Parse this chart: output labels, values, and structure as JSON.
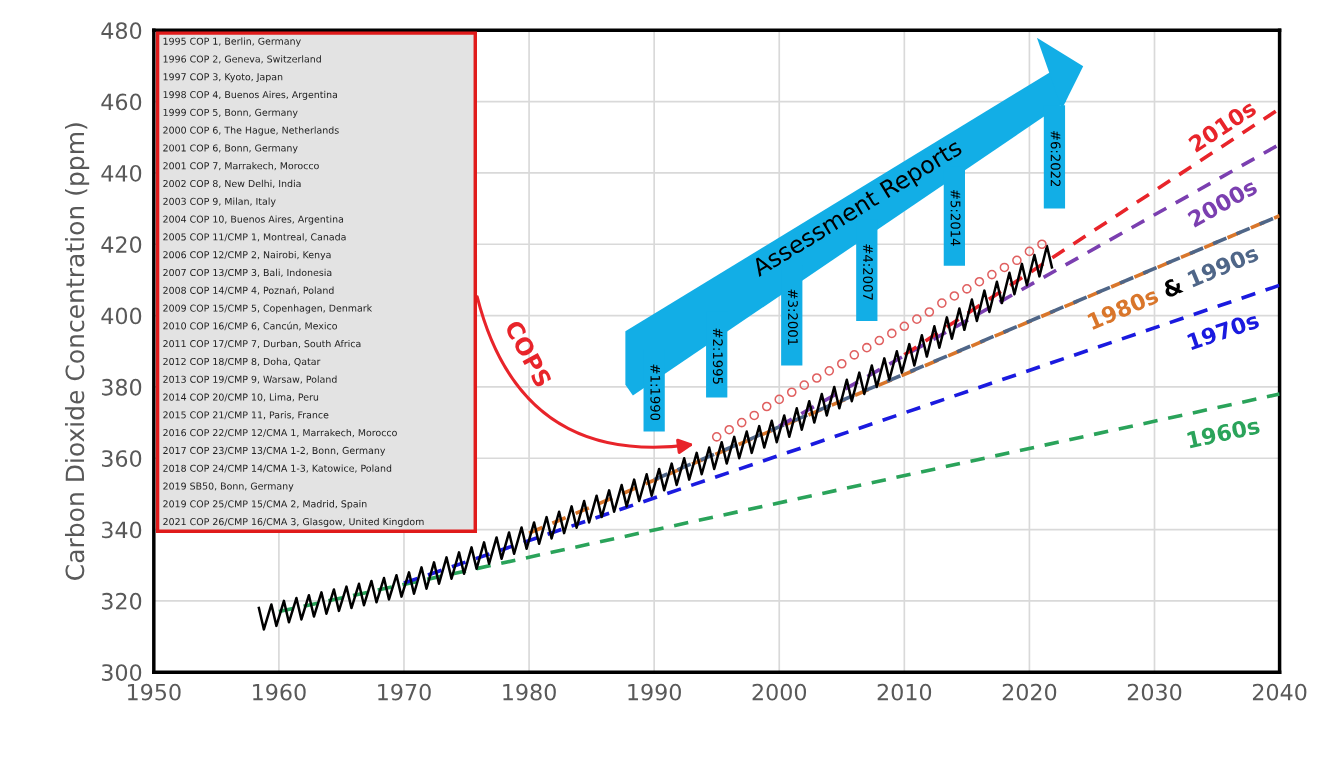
{
  "chart_data": {
    "type": "line",
    "ylabel": "Carbon Dioxide Concentration (ppm)",
    "xlim": [
      1950,
      2040
    ],
    "ylim": [
      300,
      480
    ],
    "xticks": [
      1950,
      1960,
      1970,
      1980,
      1990,
      2000,
      2010,
      2020,
      2030,
      2040
    ],
    "yticks": [
      300,
      320,
      340,
      360,
      380,
      400,
      420,
      440,
      460,
      480
    ],
    "grid": true,
    "series": [
      {
        "name": "1960s",
        "line_style": "dashed",
        "color": "#2aa35a",
        "x": [
          1960,
          2040
        ],
        "values": [
          317,
          378
        ]
      },
      {
        "name": "1970s",
        "line_style": "dashed",
        "color": "#1a1adf",
        "x": [
          1970,
          2040
        ],
        "values": [
          325,
          408.5
        ]
      },
      {
        "name": "1980s",
        "line_style": "dashed",
        "color": "#d9762b",
        "x": [
          1980,
          2040
        ],
        "values": [
          339,
          428
        ]
      },
      {
        "name": "1990s",
        "line_style": "dashed",
        "color": "#4f6688",
        "x": [
          1990,
          2040
        ],
        "values": [
          354,
          428
        ]
      },
      {
        "name": "2000s",
        "line_style": "dashed",
        "color": "#7b3fb0",
        "x": [
          2000,
          2040
        ],
        "values": [
          369,
          448
        ]
      },
      {
        "name": "2010s",
        "line_style": "dashed",
        "color": "#e8242a",
        "x": [
          2010,
          2040
        ],
        "values": [
          389,
          458
        ]
      },
      {
        "line_style": "solid",
        "color": "#000000",
        "x": [
          1958.4,
          1958.8,
          1959.4,
          1959.8,
          1960.4,
          1960.8,
          1961.4,
          1961.8,
          1962.4,
          1962.8,
          1963.4,
          1963.8,
          1964.4,
          1964.8,
          1965.4,
          1965.8,
          1966.4,
          1966.8,
          1967.4,
          1967.8,
          1968.4,
          1968.8,
          1969.4,
          1969.8,
          1970.4,
          1970.8,
          1971.4,
          1971.8,
          1972.4,
          1972.8,
          1973.4,
          1973.8,
          1974.4,
          1974.8,
          1975.4,
          1975.8,
          1976.4,
          1976.8,
          1977.4,
          1977.8,
          1978.4,
          1978.8,
          1979.4,
          1979.8,
          1980.4,
          1980.8,
          1981.4,
          1981.8,
          1982.4,
          1982.8,
          1983.4,
          1983.8,
          1984.4,
          1984.8,
          1985.4,
          1985.8,
          1986.4,
          1986.8,
          1987.4,
          1987.8,
          1988.4,
          1988.8,
          1989.4,
          1989.8,
          1990.4,
          1990.8,
          1991.4,
          1991.8,
          1992.4,
          1992.8,
          1993.4,
          1993.8,
          1994.4,
          1994.8,
          1995.4,
          1995.8,
          1996.4,
          1996.8,
          1997.4,
          1997.8,
          1998.4,
          1998.8,
          1999.4,
          1999.8,
          2000.4,
          2000.8,
          2001.4,
          2001.8,
          2002.4,
          2002.8,
          2003.4,
          2003.8,
          2004.4,
          2004.8,
          2005.4,
          2005.8,
          2006.4,
          2006.8,
          2007.4,
          2007.8,
          2008.4,
          2008.8,
          2009.4,
          2009.8,
          2010.4,
          2010.8,
          2011.4,
          2011.8,
          2012.4,
          2012.8,
          2013.4,
          2013.8,
          2014.4,
          2014.8,
          2015.4,
          2015.8,
          2016.4,
          2016.8,
          2017.4,
          2017.8,
          2018.4,
          2018.8,
          2019.4,
          2019.8,
          2020.4,
          2020.8,
          2021.4,
          2021.8
        ],
        "values": [
          318,
          312,
          319,
          313,
          320,
          314,
          320.8,
          314.8,
          321.6,
          315.6,
          322.4,
          316.4,
          323.2,
          317.2,
          324,
          318,
          324.8,
          318.8,
          325.6,
          319.6,
          326.4,
          320.4,
          327.2,
          321.2,
          328,
          322,
          329.4,
          323.4,
          330.8,
          324.8,
          332.2,
          326.2,
          333.6,
          327.6,
          335,
          329,
          336.4,
          330.4,
          337.8,
          331.8,
          339.2,
          333.2,
          340.6,
          334.6,
          342,
          336,
          343.5,
          337.5,
          345,
          339,
          346.5,
          340.5,
          348,
          342,
          349.5,
          343.5,
          351,
          345,
          352.5,
          346.5,
          354,
          348,
          355.5,
          349.5,
          357,
          351,
          358.5,
          352.5,
          360,
          354,
          361.5,
          355.5,
          363,
          357,
          364.5,
          358.5,
          366,
          360,
          367.5,
          361.5,
          369,
          363,
          370.5,
          364.5,
          372,
          366,
          374,
          368,
          376,
          370,
          378,
          372,
          380,
          374,
          382,
          376,
          384,
          378,
          386,
          380,
          388,
          382,
          390,
          384,
          392,
          386,
          394.5,
          388.5,
          397,
          391,
          399.5,
          393.5,
          402,
          396,
          404.5,
          398.5,
          407,
          401,
          409.5,
          403.5,
          412,
          406,
          414.5,
          408.5,
          417,
          411,
          419.5,
          413.5
        ]
      },
      {
        "type": "scatter",
        "marker": "circle",
        "color": "#e06060",
        "x": [
          1995,
          1996,
          1997,
          1998,
          1999,
          2000,
          2001,
          2002,
          2003,
          2004,
          2005,
          2006,
          2007,
          2008,
          2009,
          2010,
          2011,
          2012,
          2013,
          2014,
          2015,
          2016,
          2017,
          2018,
          2019,
          2020,
          2021
        ],
        "values": [
          366,
          368,
          370,
          372,
          374.5,
          376.5,
          378.5,
          380.5,
          382.5,
          384.5,
          386.5,
          389,
          391,
          393,
          395,
          397,
          399,
          401,
          403.5,
          405.5,
          407.5,
          409.5,
          411.5,
          413.5,
          415.5,
          418,
          420
        ]
      }
    ],
    "annotations": [
      "Assessment Reports",
      "COPS",
      "&",
      "#1:1990",
      "#2:1995",
      "#3:2001",
      "#4:2007",
      "#5:2014",
      "#6:2022",
      "1995 COP 1, Berlin, Germany",
      "1996 COP 2, Geneva, Switzerland",
      "1997 COP 3, Kyoto, Japan",
      "1998 COP 4, Buenos Aires, Argentina",
      "1999 COP 5, Bonn, Germany",
      "2000 COP 6, The Hague, Netherlands",
      "2001 COP 6, Bonn, Germany",
      "2001 COP 7, Marrakech, Morocco",
      "2002 COP 8, New Delhi, India",
      "2003 COP 9, Milan, Italy",
      "2004 COP 10, Buenos Aires, Argentina",
      "2005 COP 11/CMP 1, Montreal, Canada",
      "2006 COP 12/CMP 2, Nairobi, Kenya",
      "2007 COP 13/CMP 3, Bali, Indonesia",
      "2008 COP 14/CMP 4, Poznań, Poland",
      "2009 COP 15/CMP 5, Copenhagen, Denmark",
      "2010 COP 16/CMP 6, Cancún, Mexico",
      "2011 COP 17/CMP 7, Durban, South Africa",
      "2012 COP 18/CMP 8, Doha, Qatar",
      "2013 COP 19/CMP 9, Warsaw, Poland",
      "2014 COP 20/CMP 10, Lima, Peru",
      "2015 COP 21/CMP 11, Paris, France",
      "2016 COP 22/CMP 12/CMA 1, Marrakech, Morocco",
      "2017 COP 23/CMP 13/CMA 1-2, Bonn, Germany",
      "2018 COP 24/CMP 14/CMA 1-3, Katowice, Poland",
      "2019 SB50, Bonn, Germany",
      "2019 COP 25/CMP 15/CMA 2, Madrid, Spain",
      "2021 COP 26/CMP 16/CMA 3, Glasgow, United Kingdom"
    ]
  }
}
